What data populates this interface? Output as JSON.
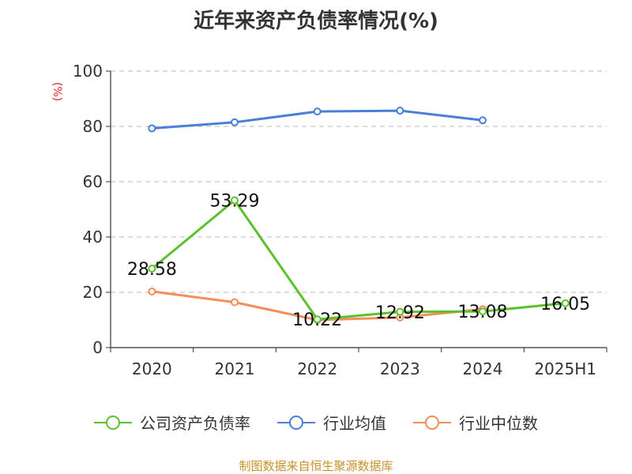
{
  "chart_data": {
    "type": "line",
    "title": "近年来资产负债率情况(%)",
    "ylabel": "(%)",
    "ylim": [
      0,
      100
    ],
    "yticks": [
      0,
      20,
      40,
      60,
      80,
      100
    ],
    "categories": [
      "2020",
      "2021",
      "2022",
      "2023",
      "2024",
      "2025H1"
    ],
    "grid": true,
    "legend_position": "bottom",
    "series": [
      {
        "name": "公司资产负债率",
        "color": "#5cc22b",
        "values": [
          28.58,
          53.29,
          10.22,
          12.92,
          13.08,
          16.05
        ],
        "labels": [
          "28.58",
          "53.29",
          "10.22",
          "12.92",
          "13.08",
          "16.05"
        ],
        "show_labels": true
      },
      {
        "name": "行业均值",
        "color": "#4a7fd8",
        "values": [
          79.3,
          81.5,
          85.4,
          85.7,
          82.2,
          null
        ],
        "show_labels": false
      },
      {
        "name": "行业中位数",
        "color": "#f58d5a",
        "values": [
          20.3,
          16.4,
          10.0,
          10.9,
          13.9,
          null
        ],
        "show_labels": false
      }
    ]
  },
  "source": "制图数据来自恒生聚源数据库"
}
